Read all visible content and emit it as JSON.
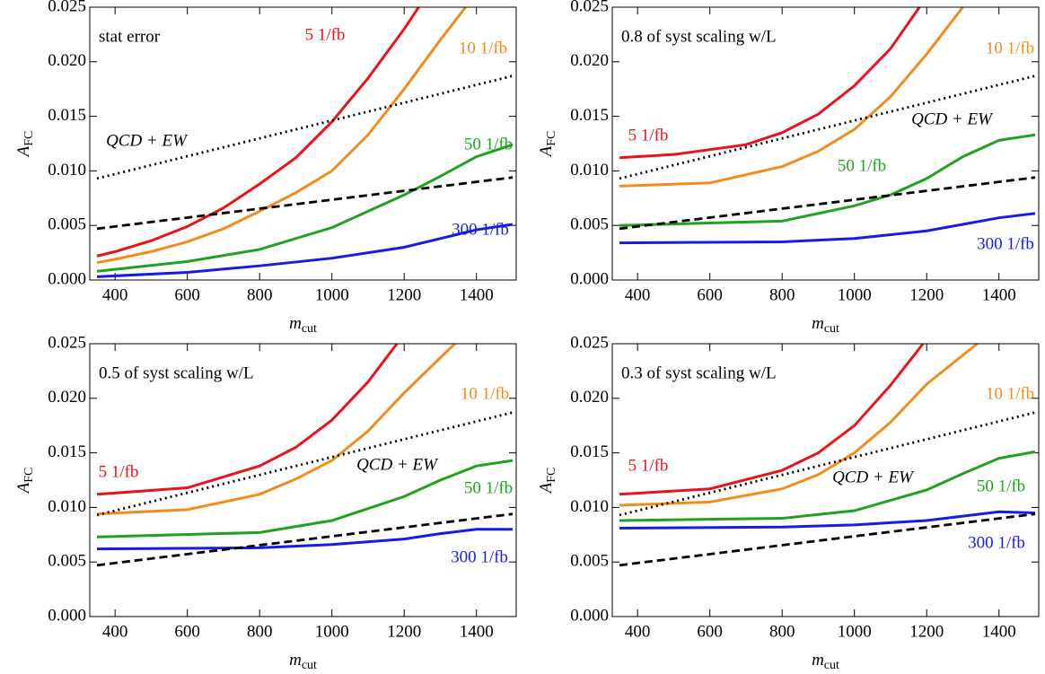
{
  "chart_data": [
    {
      "type": "line",
      "annotation": "stat error",
      "x_label": "m",
      "x_label_sub": "cut",
      "y_label": "A",
      "y_label_sub": "FC",
      "xlim": [
        330,
        1510
      ],
      "ylim": [
        0,
        0.025
      ],
      "xticks": [
        400,
        600,
        800,
        1000,
        1200,
        1400
      ],
      "yticks": [
        {
          "value": 0,
          "label": "0.000"
        },
        {
          "value": 0.005,
          "label": "0.005"
        },
        {
          "value": 0.01,
          "label": "0.010"
        },
        {
          "value": 0.015,
          "label": "0.015"
        },
        {
          "value": 0.02,
          "label": "0.020"
        },
        {
          "value": 0.025,
          "label": "0.025"
        }
      ],
      "series": [
        {
          "name": "5 1/fb",
          "color": "#e8131b",
          "style": "solid",
          "x": [
            350,
            400,
            500,
            600,
            700,
            800,
            900,
            1000,
            1100,
            1200,
            1240
          ],
          "values": [
            0.0022,
            0.0026,
            0.0036,
            0.0049,
            0.0066,
            0.0088,
            0.0112,
            0.0145,
            0.0185,
            0.023,
            0.025
          ]
        },
        {
          "name": "10 1/fb",
          "color": "#f28c1c",
          "style": "solid",
          "x": [
            350,
            400,
            500,
            600,
            700,
            800,
            900,
            1000,
            1100,
            1200,
            1300,
            1370
          ],
          "values": [
            0.0016,
            0.0019,
            0.0026,
            0.0035,
            0.0047,
            0.0063,
            0.008,
            0.01,
            0.0133,
            0.0175,
            0.022,
            0.025
          ]
        },
        {
          "name": "50 1/fb",
          "color": "#1fa31f",
          "style": "solid",
          "x": [
            350,
            600,
            800,
            1000,
            1200,
            1300,
            1400,
            1500
          ],
          "values": [
            0.0008,
            0.0017,
            0.0028,
            0.0048,
            0.0078,
            0.0095,
            0.0113,
            0.0124
          ]
        },
        {
          "name": "300 1/fb",
          "color": "#1a1ae6",
          "style": "solid",
          "x": [
            350,
            600,
            800,
            1000,
            1200,
            1300,
            1400,
            1500
          ],
          "values": [
            0.0003,
            0.0007,
            0.0013,
            0.002,
            0.003,
            0.0038,
            0.0046,
            0.0051
          ]
        },
        {
          "name": "QCD + EW",
          "color": "#000000",
          "style": "dotted",
          "x": [
            350,
            1500
          ],
          "values": [
            0.0093,
            0.0187
          ]
        },
        {
          "color": "#000000",
          "style": "dashed",
          "x": [
            350,
            1500
          ],
          "values": [
            0.0047,
            0.0094
          ]
        }
      ]
    },
    {
      "type": "line",
      "annotation": "0.8 of syst scaling w/L",
      "x_label": "m",
      "x_label_sub": "cut",
      "y_label": "A",
      "y_label_sub": "FC",
      "xlim": [
        330,
        1510
      ],
      "ylim": [
        0,
        0.025
      ],
      "xticks": [
        400,
        600,
        800,
        1000,
        1200,
        1400
      ],
      "yticks": [
        {
          "value": 0,
          "label": "0.000"
        },
        {
          "value": 0.005,
          "label": "0.005"
        },
        {
          "value": 0.01,
          "label": "0.010"
        },
        {
          "value": 0.015,
          "label": "0.015"
        },
        {
          "value": 0.02,
          "label": "0.020"
        },
        {
          "value": 0.025,
          "label": "0.025"
        }
      ],
      "series": [
        {
          "name": "5 1/fb",
          "color": "#e8131b",
          "style": "solid",
          "x": [
            350,
            500,
            700,
            800,
            900,
            1000,
            1100,
            1180
          ],
          "values": [
            0.0112,
            0.0115,
            0.0124,
            0.0135,
            0.0152,
            0.0178,
            0.0212,
            0.025
          ]
        },
        {
          "name": "10 1/fb",
          "color": "#f28c1c",
          "style": "solid",
          "x": [
            350,
            600,
            800,
            900,
            1000,
            1100,
            1200,
            1300
          ],
          "values": [
            0.0086,
            0.0089,
            0.0104,
            0.0118,
            0.0138,
            0.0168,
            0.0207,
            0.025
          ]
        },
        {
          "name": "50 1/fb",
          "color": "#1fa31f",
          "style": "solid",
          "x": [
            350,
            800,
            1000,
            1100,
            1200,
            1300,
            1400,
            1500
          ],
          "values": [
            0.005,
            0.0054,
            0.0068,
            0.0078,
            0.0093,
            0.0113,
            0.0128,
            0.0133
          ]
        },
        {
          "name": "300 1/fb",
          "color": "#1a1ae6",
          "style": "solid",
          "x": [
            350,
            800,
            1000,
            1200,
            1300,
            1400,
            1500
          ],
          "values": [
            0.0034,
            0.0035,
            0.0038,
            0.0045,
            0.0051,
            0.0057,
            0.0061
          ]
        },
        {
          "name": "QCD + EW",
          "color": "#000000",
          "style": "dotted",
          "x": [
            350,
            1500
          ],
          "values": [
            0.0093,
            0.0187
          ]
        },
        {
          "color": "#000000",
          "style": "dashed",
          "x": [
            350,
            1500
          ],
          "values": [
            0.0047,
            0.0094
          ]
        }
      ]
    },
    {
      "type": "line",
      "annotation": "0.5 of syst scaling w/L",
      "x_label": "m",
      "x_label_sub": "cut",
      "y_label": "A",
      "y_label_sub": "FC",
      "xlim": [
        330,
        1510
      ],
      "ylim": [
        0,
        0.025
      ],
      "xticks": [
        400,
        600,
        800,
        1000,
        1200,
        1400
      ],
      "yticks": [
        {
          "value": 0,
          "label": "0.000"
        },
        {
          "value": 0.005,
          "label": "0.005"
        },
        {
          "value": 0.01,
          "label": "0.010"
        },
        {
          "value": 0.015,
          "label": "0.015"
        },
        {
          "value": 0.02,
          "label": "0.020"
        },
        {
          "value": 0.025,
          "label": "0.025"
        }
      ],
      "series": [
        {
          "name": "5 1/fb",
          "color": "#e8131b",
          "style": "solid",
          "x": [
            350,
            600,
            800,
            900,
            1000,
            1100,
            1180
          ],
          "values": [
            0.0112,
            0.0118,
            0.0138,
            0.0155,
            0.018,
            0.0215,
            0.025
          ]
        },
        {
          "name": "10 1/fb",
          "color": "#f28c1c",
          "style": "solid",
          "x": [
            350,
            600,
            800,
            900,
            1000,
            1100,
            1200,
            1340
          ],
          "values": [
            0.0094,
            0.0098,
            0.0112,
            0.0126,
            0.0143,
            0.017,
            0.0205,
            0.025
          ]
        },
        {
          "name": "50 1/fb",
          "color": "#1fa31f",
          "style": "solid",
          "x": [
            350,
            800,
            1000,
            1200,
            1300,
            1400,
            1500
          ],
          "values": [
            0.0073,
            0.0077,
            0.0088,
            0.011,
            0.0125,
            0.0138,
            0.0143
          ]
        },
        {
          "name": "300 1/fb",
          "color": "#1a1ae6",
          "style": "solid",
          "x": [
            350,
            800,
            1000,
            1200,
            1300,
            1400,
            1500
          ],
          "values": [
            0.0062,
            0.0063,
            0.0066,
            0.0071,
            0.0076,
            0.008,
            0.008
          ]
        },
        {
          "name": "QCD + EW",
          "color": "#000000",
          "style": "dotted",
          "x": [
            350,
            1500
          ],
          "values": [
            0.0093,
            0.0187
          ]
        },
        {
          "color": "#000000",
          "style": "dashed",
          "x": [
            350,
            1500
          ],
          "values": [
            0.0047,
            0.0094
          ]
        }
      ]
    },
    {
      "type": "line",
      "annotation": "0.3 of syst scaling w/L",
      "x_label": "m",
      "x_label_sub": "cut",
      "y_label": "A",
      "y_label_sub": "FC",
      "xlim": [
        330,
        1510
      ],
      "ylim": [
        0,
        0.025
      ],
      "xticks": [
        400,
        600,
        800,
        1000,
        1200,
        1400
      ],
      "yticks": [
        {
          "value": 0,
          "label": "0.000"
        },
        {
          "value": 0.005,
          "label": "0.005"
        },
        {
          "value": 0.01,
          "label": "0.010"
        },
        {
          "value": 0.015,
          "label": "0.015"
        },
        {
          "value": 0.02,
          "label": "0.020"
        },
        {
          "value": 0.025,
          "label": "0.025"
        }
      ],
      "series": [
        {
          "name": "5 1/fb",
          "color": "#e8131b",
          "style": "solid",
          "x": [
            350,
            600,
            800,
            900,
            1000,
            1100,
            1190
          ],
          "values": [
            0.0112,
            0.0117,
            0.0134,
            0.015,
            0.0175,
            0.0212,
            0.025
          ]
        },
        {
          "name": "10 1/fb",
          "color": "#f28c1c",
          "style": "solid",
          "x": [
            350,
            600,
            800,
            900,
            1000,
            1100,
            1200,
            1340
          ],
          "values": [
            0.0102,
            0.0105,
            0.0117,
            0.013,
            0.015,
            0.0178,
            0.0213,
            0.025
          ]
        },
        {
          "name": "50 1/fb",
          "color": "#1fa31f",
          "style": "solid",
          "x": [
            350,
            800,
            1000,
            1200,
            1300,
            1400,
            1500
          ],
          "values": [
            0.0088,
            0.009,
            0.0097,
            0.0116,
            0.0131,
            0.0145,
            0.0151
          ]
        },
        {
          "name": "300 1/fb",
          "color": "#1a1ae6",
          "style": "solid",
          "x": [
            350,
            800,
            1000,
            1200,
            1300,
            1400,
            1500
          ],
          "values": [
            0.0081,
            0.0082,
            0.0084,
            0.0088,
            0.0092,
            0.0096,
            0.0095
          ]
        },
        {
          "name": "QCD + EW",
          "color": "#000000",
          "style": "dotted",
          "x": [
            350,
            1500
          ],
          "values": [
            0.0093,
            0.0187
          ]
        },
        {
          "color": "#000000",
          "style": "dashed",
          "x": [
            350,
            1500
          ],
          "values": [
            0.0047,
            0.0094
          ]
        }
      ]
    }
  ]
}
